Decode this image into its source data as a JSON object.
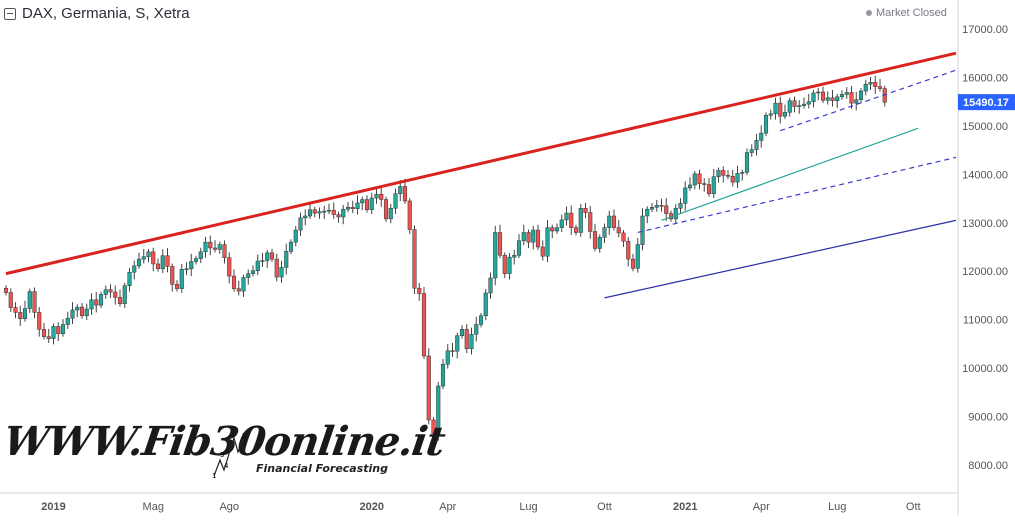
{
  "header": {
    "title": "DAX, Germania, S, Xetra",
    "status": "Market Closed"
  },
  "watermark": {
    "brand": "WWW.Fib30online.it",
    "tagline": "Financial Forecasting"
  },
  "price_label": "15490.17",
  "colors": {
    "up": "#26a69a",
    "down": "#ef5350",
    "resistance": "#d9231f",
    "channel_dash": "#3a3ccf",
    "teal_line": "#26a69a",
    "support": "#2a2ea8",
    "price_tag": "#2962ff",
    "axis_text": "#555555",
    "background": "#ffffff"
  },
  "chart_data": {
    "type": "candlestick",
    "timeframe": "weekly",
    "ylim": [
      7600,
      17400
    ],
    "y_ticks": [
      "17000.00",
      "16000.00",
      "15000.00",
      "14000.00",
      "13000.00",
      "12000.00",
      "11000.00",
      "10000.00",
      "9000.00",
      "8000.00"
    ],
    "x_ticks": [
      "2019",
      "Mag",
      "Ago",
      "2020",
      "Apr",
      "Lug",
      "Ott",
      "2021",
      "Apr",
      "Lug",
      "Ott"
    ],
    "last_price": 15490.17,
    "candles": [
      [
        11650,
        11560
      ],
      [
        11560,
        11250
      ],
      [
        11250,
        11150
      ],
      [
        11150,
        11020
      ],
      [
        11020,
        11230
      ],
      [
        11230,
        11580
      ],
      [
        11580,
        11150
      ],
      [
        11150,
        10800
      ],
      [
        10800,
        10650
      ],
      [
        10650,
        10610
      ],
      [
        10610,
        10860
      ],
      [
        10860,
        10710
      ],
      [
        10710,
        10900
      ],
      [
        10900,
        11030
      ],
      [
        11030,
        11200
      ],
      [
        11200,
        11260
      ],
      [
        11260,
        11080
      ],
      [
        11080,
        11220
      ],
      [
        11220,
        11410
      ],
      [
        11410,
        11300
      ],
      [
        11300,
        11520
      ],
      [
        11520,
        11620
      ],
      [
        11620,
        11570
      ],
      [
        11570,
        11460
      ],
      [
        11460,
        11330
      ],
      [
        11330,
        11700
      ],
      [
        11700,
        11980
      ],
      [
        11980,
        12110
      ],
      [
        12110,
        12250
      ],
      [
        12250,
        12300
      ],
      [
        12300,
        12400
      ],
      [
        12400,
        12150
      ],
      [
        12150,
        12050
      ],
      [
        12050,
        12320
      ],
      [
        12320,
        12100
      ],
      [
        12100,
        11730
      ],
      [
        11730,
        11640
      ],
      [
        11640,
        12040
      ],
      [
        12040,
        12050
      ],
      [
        12050,
        12200
      ],
      [
        12200,
        12260
      ],
      [
        12260,
        12400
      ],
      [
        12400,
        12600
      ],
      [
        12600,
        12480
      ],
      [
        12480,
        12450
      ],
      [
        12450,
        12550
      ],
      [
        12550,
        12280
      ],
      [
        12280,
        11900
      ],
      [
        11900,
        11640
      ],
      [
        11640,
        11590
      ],
      [
        11590,
        11870
      ],
      [
        11870,
        11950
      ],
      [
        11950,
        12010
      ],
      [
        12010,
        12210
      ],
      [
        12210,
        12220
      ],
      [
        12220,
        12380
      ],
      [
        12380,
        12250
      ],
      [
        12250,
        11880
      ],
      [
        11880,
        12080
      ],
      [
        12080,
        12410
      ],
      [
        12410,
        12600
      ],
      [
        12600,
        12850
      ],
      [
        12850,
        13100
      ],
      [
        13100,
        13140
      ],
      [
        13140,
        13270
      ],
      [
        13270,
        13200
      ],
      [
        13200,
        13230
      ],
      [
        13230,
        13240
      ],
      [
        13240,
        13260
      ],
      [
        13260,
        13170
      ],
      [
        13170,
        13120
      ],
      [
        13120,
        13280
      ],
      [
        13280,
        13320
      ],
      [
        13320,
        13290
      ],
      [
        13290,
        13410
      ],
      [
        13410,
        13480
      ],
      [
        13480,
        13270
      ],
      [
        13270,
        13510
      ],
      [
        13510,
        13590
      ],
      [
        13590,
        13480
      ],
      [
        13480,
        13080
      ],
      [
        13080,
        13300
      ],
      [
        13300,
        13600
      ],
      [
        13600,
        13750
      ],
      [
        13750,
        13450
      ],
      [
        13450,
        12860
      ],
      [
        12860,
        11650
      ],
      [
        11650,
        11540
      ],
      [
        11540,
        10250
      ],
      [
        10250,
        8930
      ],
      [
        8930,
        8650
      ],
      [
        8650,
        9630
      ],
      [
        9630,
        10080
      ],
      [
        10080,
        10360
      ],
      [
        10360,
        10350
      ],
      [
        10350,
        10670
      ],
      [
        10670,
        10800
      ],
      [
        10800,
        10400
      ],
      [
        10400,
        10700
      ],
      [
        10700,
        10900
      ],
      [
        10900,
        11080
      ],
      [
        11080,
        11550
      ],
      [
        11550,
        11860
      ],
      [
        11860,
        12800
      ],
      [
        12800,
        12330
      ],
      [
        12330,
        11950
      ],
      [
        11950,
        12290
      ],
      [
        12290,
        12330
      ],
      [
        12330,
        12630
      ],
      [
        12630,
        12800
      ],
      [
        12800,
        12600
      ],
      [
        12600,
        12850
      ],
      [
        12850,
        12500
      ],
      [
        12500,
        12310
      ],
      [
        12310,
        12900
      ],
      [
        12900,
        12830
      ],
      [
        12830,
        12900
      ],
      [
        12900,
        13060
      ],
      [
        13060,
        13200
      ],
      [
        13200,
        12900
      ],
      [
        12900,
        12800
      ],
      [
        12800,
        13300
      ],
      [
        13300,
        13210
      ],
      [
        13210,
        12820
      ],
      [
        12820,
        12470
      ],
      [
        12470,
        12700
      ],
      [
        12700,
        12900
      ],
      [
        12900,
        13140
      ],
      [
        13140,
        12900
      ],
      [
        12900,
        12790
      ],
      [
        12790,
        12620
      ],
      [
        12620,
        12250
      ],
      [
        12250,
        12060
      ],
      [
        12060,
        12550
      ],
      [
        12550,
        13140
      ],
      [
        13140,
        13280
      ],
      [
        13280,
        13320
      ],
      [
        13320,
        13360
      ],
      [
        13360,
        13350
      ],
      [
        13350,
        13190
      ],
      [
        13190,
        13080
      ],
      [
        13080,
        13300
      ],
      [
        13300,
        13400
      ],
      [
        13400,
        13720
      ],
      [
        13720,
        13780
      ],
      [
        13780,
        14010
      ],
      [
        14010,
        13810
      ],
      [
        13810,
        13790
      ],
      [
        13790,
        13600
      ],
      [
        13600,
        13950
      ],
      [
        13950,
        14080
      ],
      [
        14080,
        13980
      ],
      [
        13980,
        13960
      ],
      [
        13960,
        13840
      ],
      [
        13840,
        14020
      ],
      [
        14020,
        14040
      ],
      [
        14040,
        14450
      ],
      [
        14450,
        14510
      ],
      [
        14510,
        14700
      ],
      [
        14700,
        14850
      ],
      [
        14850,
        15220
      ],
      [
        15220,
        15250
      ],
      [
        15250,
        15470
      ],
      [
        15470,
        15200
      ],
      [
        15200,
        15280
      ],
      [
        15280,
        15520
      ],
      [
        15520,
        15400
      ],
      [
        15400,
        15420
      ],
      [
        15420,
        15450
      ],
      [
        15450,
        15500
      ],
      [
        15500,
        15680
      ],
      [
        15680,
        15700
      ],
      [
        15700,
        15530
      ],
      [
        15530,
        15580
      ],
      [
        15580,
        15520
      ],
      [
        15520,
        15600
      ],
      [
        15600,
        15650
      ],
      [
        15650,
        15690
      ],
      [
        15690,
        15470
      ],
      [
        15470,
        15540
      ],
      [
        15540,
        15720
      ],
      [
        15720,
        15860
      ],
      [
        15860,
        15900
      ],
      [
        15900,
        15810
      ],
      [
        15810,
        15770
      ],
      [
        15770,
        15490
      ]
    ],
    "trendlines": [
      {
        "name": "resistance",
        "style": "solid-thick",
        "color": "#d9231f",
        "from": [
          0,
          11950
        ],
        "to": [
          200,
          16500
        ]
      },
      {
        "name": "upper-channel",
        "style": "dashed",
        "color": "#3a3ccf",
        "from": [
          163,
          14900
        ],
        "to": [
          200,
          16150
        ]
      },
      {
        "name": "mid-channel",
        "style": "dashed",
        "color": "#3a3ccf",
        "from": [
          133,
          12800
        ],
        "to": [
          200,
          14350
        ]
      },
      {
        "name": "teal-line",
        "style": "solid",
        "color": "#26a69a",
        "from": [
          138,
          13050
        ],
        "to": [
          192,
          14950
        ]
      },
      {
        "name": "support",
        "style": "solid",
        "color": "#2a2ea8",
        "from": [
          126,
          11450
        ],
        "to": [
          200,
          13050
        ]
      }
    ]
  }
}
